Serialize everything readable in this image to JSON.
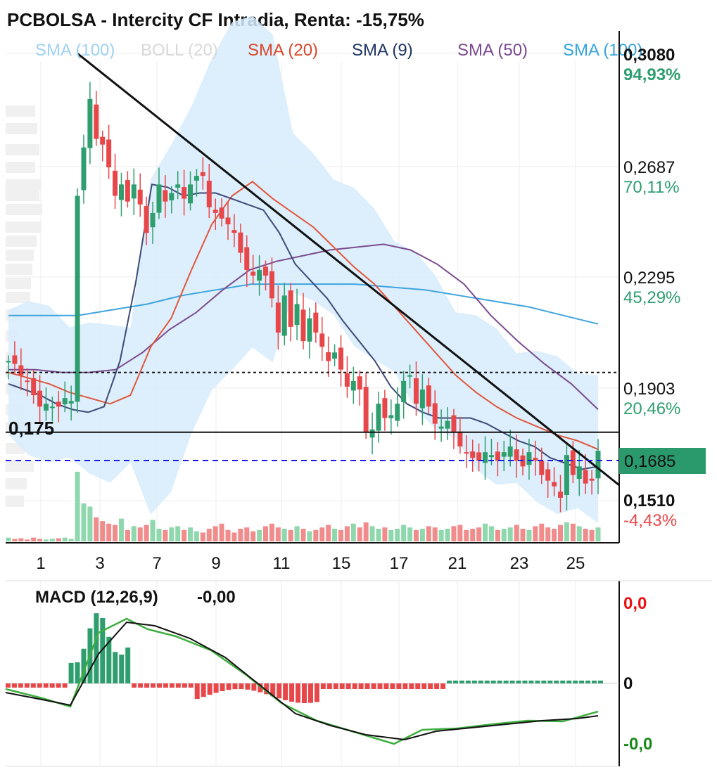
{
  "title": "PCBOLSA - Intercity CF Intradia, Renta: -15,75%",
  "legend": [
    {
      "label": "SMA (100)",
      "color": "#9fd2f3"
    },
    {
      "label": "BOLL (20)",
      "color": "#d9d9d9"
    },
    {
      "label": "SMA (20)",
      "color": "#d9482b"
    },
    {
      "label": "SMA (9)",
      "color": "#1f3564"
    },
    {
      "label": "SMA (50)",
      "color": "#7a4a8e"
    },
    {
      "label": "SMA (100)",
      "color": "#36a3dc"
    }
  ],
  "colors": {
    "up": "#2e9e6f",
    "down": "#e8474a",
    "vol_up": "#8fd8ad",
    "vol_down": "#f08c8c",
    "boll_fill": "#d7ecfb",
    "sma9": "#3e4a78",
    "sma20": "#e0563c",
    "sma50": "#7b4b8f",
    "sma100": "#3ea4de",
    "trendline": "#111111",
    "current_price_line": "#1a1ae6",
    "current_price_badge": "#2a9a6c",
    "pct_up": "#2e9e6f",
    "pct_down": "#e8474a",
    "macd_pos": "#2e9e6f",
    "macd_neg": "#e8474a",
    "macd_zero_top": "#ee1111",
    "macd_zero_bottom": "#1b8a1b"
  },
  "price_axis": [
    {
      "price": "0,3080",
      "pct": "94,93%",
      "pct_color": "up"
    },
    {
      "price": "0,2687",
      "pct": "70,11%",
      "pct_color": "up"
    },
    {
      "price": "0,2295",
      "pct": "45,29%",
      "pct_color": "up"
    },
    {
      "price": "0,1903",
      "pct": "20,46%",
      "pct_color": "up"
    },
    {
      "price": "0,1510",
      "pct": "-4,43%",
      "pct_color": "down"
    }
  ],
  "current_price": "0,1685",
  "support_label": "0,175",
  "x_ticks": [
    "1",
    "3",
    "7",
    "9",
    "11",
    "15",
    "17",
    "21",
    "23",
    "25"
  ],
  "macd": {
    "label": "MACD (12,26,9)",
    "value": "-0,00",
    "axis_top": "0,0",
    "axis_mid": "0",
    "axis_bottom": "-0,0"
  },
  "chart_data": {
    "type": "candlestick",
    "title": "PCBOLSA - Intercity CF Intradia, Renta: -15,75%",
    "ylim": [
      0.151,
      0.308
    ],
    "support_level": 0.175,
    "last_price": 0.1685,
    "dotted_level": 0.196,
    "x_ticks": [
      "1",
      "3",
      "7",
      "9",
      "11",
      "15",
      "17",
      "21",
      "23",
      "25"
    ],
    "closes": [
      0.2,
      0.199,
      0.195,
      0.193,
      0.188,
      0.184,
      0.185,
      0.184,
      0.184,
      0.187,
      0.186,
      0.258,
      0.275,
      0.292,
      0.278,
      0.276,
      0.268,
      0.258,
      0.262,
      0.256,
      0.262,
      0.255,
      0.245,
      0.252,
      0.262,
      0.256,
      0.259,
      0.262,
      0.257,
      0.262,
      0.265,
      0.265,
      0.254,
      0.252,
      0.25,
      0.248,
      0.245,
      0.238,
      0.232,
      0.23,
      0.232,
      0.23,
      0.222,
      0.21,
      0.223,
      0.212,
      0.22,
      0.207,
      0.215,
      0.21,
      0.205,
      0.2,
      0.203,
      0.197,
      0.191,
      0.193,
      0.19,
      0.175,
      0.176,
      0.185,
      0.18,
      0.181,
      0.185,
      0.193,
      0.195,
      0.185,
      0.19,
      0.184,
      0.178,
      0.177,
      0.179,
      0.175,
      0.17,
      0.168,
      0.166,
      0.165,
      0.168,
      0.167,
      0.165,
      0.168,
      0.17,
      0.165,
      0.163,
      0.168,
      0.165,
      0.16,
      0.158,
      0.156,
      0.152,
      0.167,
      0.16,
      0.163,
      0.157,
      0.158,
      0.1685
    ],
    "sma9": [
      0.192,
      0.19,
      0.188,
      0.185,
      0.183,
      0.182,
      0.184,
      0.2,
      0.228,
      0.262,
      0.261,
      0.258,
      0.259,
      0.259,
      0.257,
      0.255,
      0.253,
      0.245,
      0.234,
      0.228,
      0.222,
      0.214,
      0.207,
      0.2,
      0.191,
      0.185,
      0.182,
      0.18,
      0.18,
      0.18,
      0.178,
      0.175,
      0.172,
      0.17,
      0.166,
      0.164,
      0.162,
      0.163
    ],
    "sma20": [
      0.196,
      0.194,
      0.192,
      0.189,
      0.187,
      0.185,
      0.188,
      0.205,
      0.215,
      0.232,
      0.248,
      0.258,
      0.263,
      0.257,
      0.252,
      0.247,
      0.24,
      0.233,
      0.227,
      0.219,
      0.211,
      0.203,
      0.195,
      0.189,
      0.184,
      0.18,
      0.177,
      0.174,
      0.172,
      0.169
    ],
    "sma50": [
      0.197,
      0.197,
      0.196,
      0.196,
      0.197,
      0.203,
      0.211,
      0.217,
      0.225,
      0.232,
      0.235,
      0.237,
      0.239,
      0.24,
      0.241,
      0.239,
      0.234,
      0.227,
      0.216,
      0.207,
      0.199,
      0.192,
      0.183
    ],
    "sma100": [
      0.216,
      0.216,
      0.216,
      0.218,
      0.22,
      0.223,
      0.225,
      0.227,
      0.227,
      0.227,
      0.227,
      0.226,
      0.225,
      0.223,
      0.221,
      0.219,
      0.216,
      0.213
    ],
    "macd": {
      "series": [
        {
          "name": "MACD (12,26,9)",
          "last": "-0,00"
        }
      ]
    }
  }
}
